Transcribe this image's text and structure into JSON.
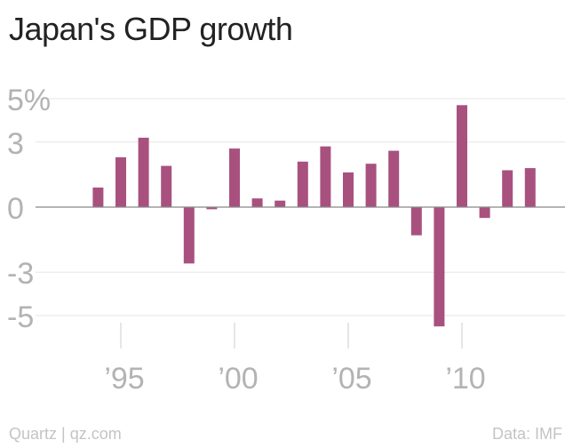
{
  "title": "Japan's GDP growth",
  "footer": {
    "source_brand": "Quartz | qz.com",
    "data_source": "Data: IMF"
  },
  "colors": {
    "bar": "#a8517f",
    "grid": "#e6e6e6",
    "zero_line": "#888888",
    "tick_label": "#b3b3b3",
    "title": "#222222"
  },
  "chart_data": {
    "type": "bar",
    "title": "Japan's GDP growth",
    "xlabel": "",
    "ylabel": "",
    "ylim": [
      -6,
      5
    ],
    "xlim": [
      1992.3,
      2014.3
    ],
    "grid": true,
    "y_ticks": [
      {
        "value": 5,
        "label": "5%"
      },
      {
        "value": 3,
        "label": "3"
      },
      {
        "value": 0,
        "label": "0"
      },
      {
        "value": -3,
        "label": "-3"
      },
      {
        "value": -5,
        "label": "-5"
      }
    ],
    "x_ticks": [
      {
        "value": 1995,
        "label": "’95"
      },
      {
        "value": 2000,
        "label": "’00"
      },
      {
        "value": 2005,
        "label": "’05"
      },
      {
        "value": 2010,
        "label": "’10"
      }
    ],
    "x": [
      1994,
      1995,
      1996,
      1997,
      1998,
      1999,
      2000,
      2001,
      2002,
      2003,
      2004,
      2005,
      2006,
      2007,
      2008,
      2009,
      2010,
      2011,
      2012,
      2013
    ],
    "values": [
      0.9,
      2.3,
      3.2,
      1.9,
      -2.6,
      -0.1,
      2.7,
      0.4,
      0.3,
      2.1,
      2.8,
      1.6,
      2.0,
      2.6,
      -1.3,
      -5.5,
      4.7,
      -0.5,
      1.7,
      1.8
    ]
  }
}
